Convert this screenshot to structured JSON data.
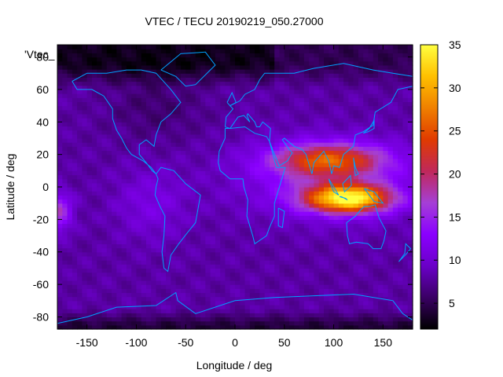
{
  "chart_data": {
    "type": "heatmap",
    "title": "VTEC / TECU 20190219_050.27000",
    "xlabel": "Longitude / deg",
    "ylabel": "Latitude / deg",
    "key_label": "'Vtec_",
    "xlim": [
      -180,
      180
    ],
    "ylim": [
      -87.5,
      87.5
    ],
    "zlim": [
      2,
      35
    ],
    "xticks": [
      -150,
      -100,
      -50,
      0,
      50,
      100,
      150
    ],
    "yticks": [
      80,
      60,
      40,
      20,
      0,
      -20,
      -40,
      -60,
      -80
    ],
    "colorbar_ticks": [
      35,
      30,
      25,
      20,
      15,
      10,
      5
    ],
    "colormap": [
      "#000000",
      "#3a0064",
      "#6a00c8",
      "#8a00ff",
      "#a53fd6",
      "#c0285a",
      "#e03b00",
      "#f08000",
      "#ffc000",
      "#ffff40"
    ],
    "grid": false,
    "colorbar_position": "right",
    "overlay_color": "#00a0ff",
    "resolution_deg": [
      5,
      2.5
    ],
    "field_features": [
      {
        "feature": "background",
        "value": 8
      },
      {
        "feature": "north polar low",
        "lon": -150,
        "lat": 78,
        "value": 3
      },
      {
        "feature": "north america low",
        "lon": -80,
        "lat": 50,
        "value": 6
      },
      {
        "feature": "asian crest north",
        "lon": 95,
        "lat": 17,
        "value": 22
      },
      {
        "feature": "asian crest south",
        "lon": 115,
        "lat": -7,
        "value": 33
      },
      {
        "feature": "pacific patch",
        "lon": -180,
        "lat": -15,
        "value": 17
      },
      {
        "feature": "south america patch",
        "lon": -85,
        "lat": -10,
        "value": 11
      },
      {
        "feature": "southern dark band",
        "lat": -85,
        "value": 4
      }
    ]
  }
}
